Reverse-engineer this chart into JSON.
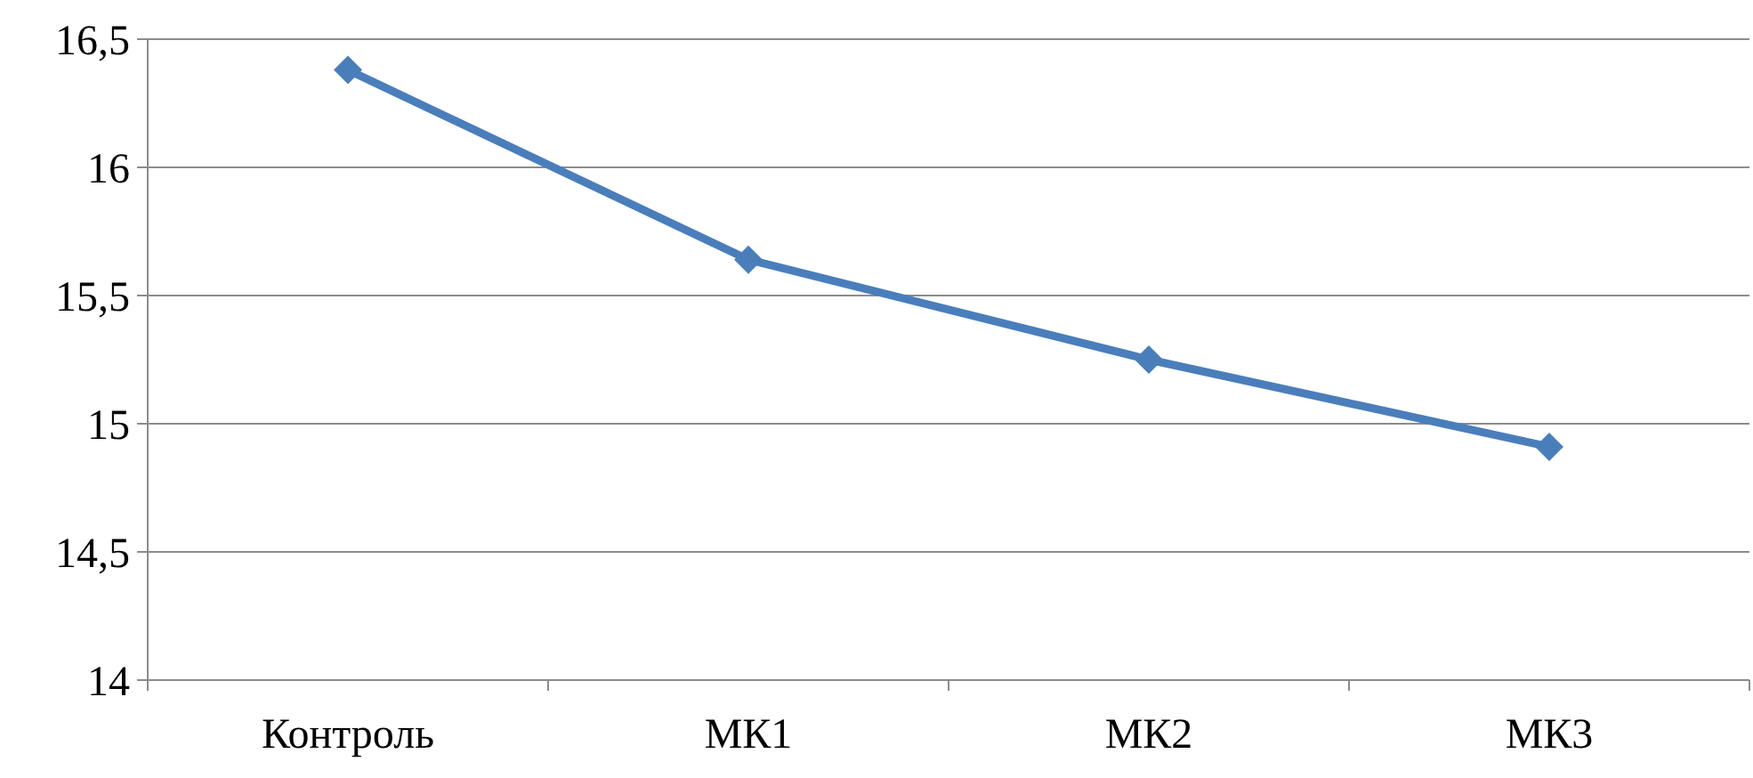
{
  "chart_data": {
    "type": "line",
    "categories": [
      "Контроль",
      "МК1",
      "МК2",
      "МК3"
    ],
    "series": [
      {
        "color": "#4a7ebb",
        "values": [
          16.38,
          15.64,
          15.25,
          14.91
        ]
      }
    ],
    "ylim": [
      14,
      16.5
    ],
    "yticks": [
      {
        "value": 14,
        "label": "14"
      },
      {
        "value": 14.5,
        "label": "14,5"
      },
      {
        "value": 15,
        "label": "15"
      },
      {
        "value": 15.5,
        "label": "15,5"
      },
      {
        "value": 16,
        "label": "16"
      },
      {
        "value": 16.5,
        "label": "16,5"
      }
    ],
    "grid": "y",
    "marker": "diamond",
    "line_style": "solid"
  }
}
